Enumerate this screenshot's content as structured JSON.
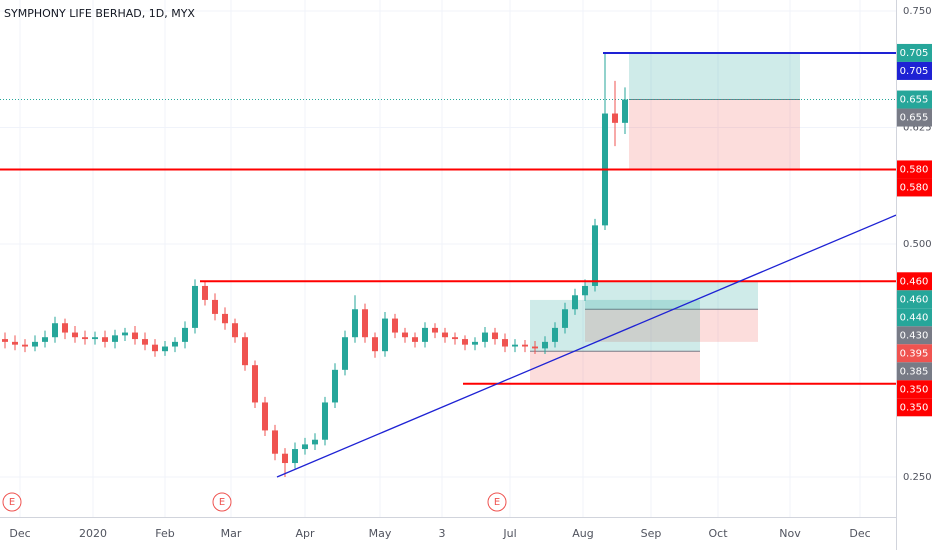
{
  "chart_data": {
    "type": "candlestick",
    "title": "SYMPHONY LIFE BERHAD, 1D, MYX",
    "up_color": "#26a69a",
    "down_color": "#ef5350",
    "grid": true,
    "xlim": [
      -0.5,
      89.1
    ],
    "ylim": [
      0.2071,
      0.7618
    ],
    "xticks": [
      {
        "value": 1.5,
        "label": "Dec"
      },
      {
        "value": 8.8,
        "label": "2020"
      },
      {
        "value": 16,
        "label": "Feb"
      },
      {
        "value": 22.6,
        "label": "Mar"
      },
      {
        "value": 30,
        "label": "Apr"
      },
      {
        "value": 37.5,
        "label": "May"
      },
      {
        "value": 43.7,
        "label": "3"
      },
      {
        "value": 50.5,
        "label": "Jul"
      },
      {
        "value": 57.8,
        "label": "Aug"
      },
      {
        "value": 64.6,
        "label": "Sep"
      },
      {
        "value": 71.3,
        "label": "Oct"
      },
      {
        "value": 78.5,
        "label": "Nov"
      },
      {
        "value": 85.5,
        "label": "Dec"
      }
    ],
    "yticks": [
      {
        "value": 0.75,
        "label": "0.750"
      },
      {
        "value": 0.625,
        "label": "0.625"
      },
      {
        "value": 0.5,
        "label": "0.500"
      },
      {
        "value": 0.25,
        "label": "0.250"
      }
    ],
    "open": [
      0.398,
      0.395,
      0.392,
      0.39,
      0.395,
      0.4,
      0.415,
      0.405,
      0.4,
      0.398,
      0.4,
      0.395,
      0.402,
      0.405,
      0.398,
      0.392,
      0.385,
      0.39,
      0.395,
      0.41,
      0.455,
      0.44,
      0.425,
      0.415,
      0.4,
      0.37,
      0.33,
      0.3,
      0.275,
      0.265,
      0.28,
      0.285,
      0.29,
      0.33,
      0.365,
      0.4,
      0.43,
      0.4,
      0.385,
      0.42,
      0.405,
      0.4,
      0.395,
      0.41,
      0.405,
      0.4,
      0.398,
      0.392,
      0.395,
      0.405,
      0.398,
      0.39,
      0.392,
      0.39,
      0.388,
      0.395,
      0.41,
      0.43,
      0.445,
      0.455,
      0.52,
      0.64,
      0.63
    ],
    "high": [
      0.405,
      0.402,
      0.398,
      0.402,
      0.407,
      0.422,
      0.42,
      0.412,
      0.407,
      0.406,
      0.407,
      0.408,
      0.41,
      0.412,
      0.405,
      0.398,
      0.396,
      0.4,
      0.417,
      0.462,
      0.46,
      0.447,
      0.432,
      0.42,
      0.405,
      0.375,
      0.336,
      0.306,
      0.281,
      0.287,
      0.292,
      0.297,
      0.336,
      0.372,
      0.407,
      0.445,
      0.436,
      0.405,
      0.427,
      0.425,
      0.41,
      0.405,
      0.416,
      0.415,
      0.41,
      0.405,
      0.402,
      0.4,
      0.411,
      0.41,
      0.404,
      0.398,
      0.397,
      0.396,
      0.401,
      0.416,
      0.437,
      0.452,
      0.462,
      0.527,
      0.705,
      0.675,
      0.668
    ],
    "low": [
      0.388,
      0.386,
      0.384,
      0.385,
      0.389,
      0.394,
      0.398,
      0.394,
      0.392,
      0.392,
      0.389,
      0.388,
      0.396,
      0.392,
      0.386,
      0.379,
      0.38,
      0.384,
      0.388,
      0.404,
      0.434,
      0.418,
      0.408,
      0.394,
      0.364,
      0.324,
      0.294,
      0.268,
      0.25,
      0.259,
      0.274,
      0.279,
      0.284,
      0.324,
      0.359,
      0.394,
      0.394,
      0.378,
      0.379,
      0.399,
      0.394,
      0.389,
      0.389,
      0.399,
      0.394,
      0.392,
      0.386,
      0.386,
      0.389,
      0.392,
      0.384,
      0.384,
      0.384,
      0.382,
      0.382,
      0.389,
      0.404,
      0.424,
      0.439,
      0.449,
      0.515,
      0.605,
      0.618
    ],
    "close": [
      0.395,
      0.392,
      0.39,
      0.395,
      0.4,
      0.415,
      0.405,
      0.4,
      0.398,
      0.4,
      0.395,
      0.402,
      0.405,
      0.398,
      0.392,
      0.385,
      0.39,
      0.395,
      0.41,
      0.455,
      0.44,
      0.425,
      0.415,
      0.4,
      0.37,
      0.33,
      0.3,
      0.275,
      0.265,
      0.28,
      0.285,
      0.29,
      0.33,
      0.365,
      0.4,
      0.43,
      0.4,
      0.385,
      0.42,
      0.405,
      0.4,
      0.395,
      0.41,
      0.405,
      0.4,
      0.398,
      0.392,
      0.395,
      0.405,
      0.398,
      0.39,
      0.392,
      0.39,
      0.388,
      0.395,
      0.41,
      0.43,
      0.445,
      0.455,
      0.52,
      0.64,
      0.63,
      0.655
    ],
    "last_price": 0.655,
    "last_price_color": "#26a69a",
    "hlines": [
      {
        "value": 0.58,
        "start": -0.5,
        "color": "#ff0000"
      },
      {
        "value": 0.46,
        "start": 19.5,
        "color": "#ff0000"
      },
      {
        "value": 0.35,
        "start": 45.8,
        "color": "#ff0000"
      },
      {
        "value": 0.705,
        "start": 59.8,
        "color": "#1e22d4"
      }
    ],
    "trendline": {
      "x": [
        27.2,
        89.1
      ],
      "y": [
        0.25,
        0.531
      ],
      "color": "#1e22d4"
    },
    "positions": [
      {
        "x": [
          62.4,
          79.5
        ],
        "target": 0.705,
        "entry": 0.655,
        "stop": 0.58
      },
      {
        "x": [
          58,
          75.3
        ],
        "target": 0.46,
        "entry": 0.43,
        "stop": 0.395
      },
      {
        "x": [
          52.5,
          69.5
        ],
        "target": 0.44,
        "entry": 0.385,
        "stop": 0.35
      }
    ],
    "earnings": [
      {
        "x": 0.7,
        "label": "E"
      },
      {
        "x": 21.7,
        "label": "E"
      },
      {
        "x": 49.2,
        "label": "E"
      }
    ],
    "price_labels": [
      {
        "value": 0.705,
        "label": "0.705",
        "color": "#26a69a"
      },
      {
        "value": 0.705,
        "label": "0.705",
        "color": "#1e22d4"
      },
      {
        "value": 0.655,
        "label": "0.655",
        "color": "#26a69a"
      },
      {
        "value": 0.655,
        "label": "0.655",
        "color": "#787b86"
      },
      {
        "value": 0.58,
        "label": "0.580",
        "color": "#ff0000"
      },
      {
        "value": 0.58,
        "label": "0.580",
        "color": "#ff0000"
      },
      {
        "value": 0.46,
        "label": "0.460",
        "color": "#ff0000"
      },
      {
        "value": 0.46,
        "label": "0.460",
        "color": "#26a69a"
      },
      {
        "value": 0.44,
        "label": "0.440",
        "color": "#26a69a"
      },
      {
        "value": 0.43,
        "label": "0.430",
        "color": "#787b86"
      },
      {
        "value": 0.395,
        "label": "0.395",
        "color": "#ef5350"
      },
      {
        "value": 0.385,
        "label": "0.385",
        "color": "#787b86"
      },
      {
        "value": 0.35,
        "label": "0.350",
        "color": "#ff0000"
      },
      {
        "value": 0.35,
        "label": "0.350",
        "color": "#ff0000"
      }
    ]
  }
}
